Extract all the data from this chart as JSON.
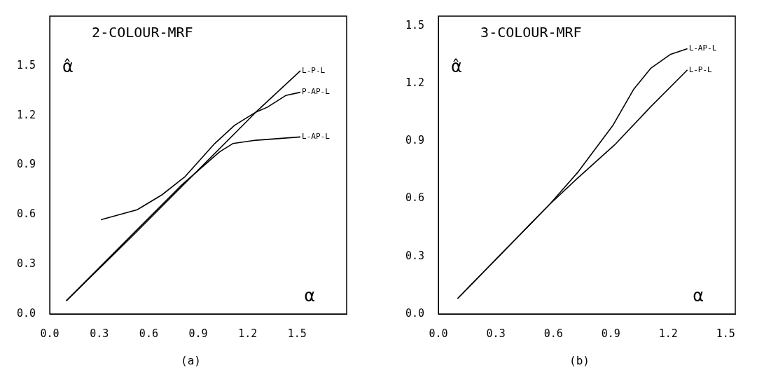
{
  "chart_data": [
    {
      "type": "line",
      "title": "2-COLOUR-MRF",
      "xlabel": "α",
      "ylabel": "α̂",
      "annotations": [
        "(a)"
      ],
      "xlim": [
        0,
        1.8
      ],
      "ylim": [
        0,
        1.8
      ],
      "xticks": [
        {
          "value": 0,
          "label": "0.0"
        },
        0.3,
        0.6,
        0.9,
        1.2,
        1.5
      ],
      "yticks": [
        {
          "value": 0,
          "label": "0.0"
        },
        0.3,
        0.6,
        0.9,
        1.2,
        1.5
      ],
      "grid": false,
      "legend": false,
      "marker": "none",
      "line_style": "solid",
      "series": [
        {
          "name": "L-P-L",
          "color": "#000000",
          "x": [
            0.1,
            0.5,
            0.9,
            1.25,
            1.52
          ],
          "values": [
            0.08,
            0.47,
            0.87,
            1.22,
            1.47
          ]
        },
        {
          "name": "P-AP-L",
          "color": "#000000",
          "x": [
            0.31,
            0.53,
            0.68,
            0.82,
            1.0,
            1.12,
            1.25,
            1.32,
            1.43,
            1.52
          ],
          "values": [
            0.57,
            0.63,
            0.72,
            0.83,
            1.03,
            1.14,
            1.22,
            1.25,
            1.32,
            1.34
          ]
        },
        {
          "name": "L-AP-L",
          "color": "#000000",
          "x": [
            0.1,
            0.5,
            0.8,
            1.03,
            1.11,
            1.25,
            1.52
          ],
          "values": [
            0.08,
            0.48,
            0.78,
            0.98,
            1.03,
            1.05,
            1.07
          ]
        }
      ]
    },
    {
      "type": "line",
      "title": "3-COLOUR-MRF",
      "xlabel": "α",
      "ylabel": "α̂",
      "annotations": [
        "(b)"
      ],
      "xlim": [
        0,
        1.55
      ],
      "ylim": [
        0,
        1.55
      ],
      "xticks": [
        {
          "value": 0,
          "label": "0.0"
        },
        0.3,
        0.6,
        0.9,
        1.2,
        1.5
      ],
      "yticks": [
        {
          "value": 0,
          "label": "0.0"
        },
        0.3,
        0.6,
        0.9,
        1.2,
        1.5
      ],
      "grid": false,
      "legend": false,
      "marker": "none",
      "line_style": "solid",
      "series": [
        {
          "name": "L-AP-L",
          "color": "#000000",
          "x": [
            0.1,
            0.58,
            0.73,
            0.91,
            1.02,
            1.11,
            1.21,
            1.3
          ],
          "values": [
            0.08,
            0.57,
            0.74,
            0.98,
            1.17,
            1.28,
            1.35,
            1.38
          ]
        },
        {
          "name": "L-P-L",
          "color": "#000000",
          "x": [
            0.1,
            0.58,
            0.73,
            0.92,
            1.11,
            1.3
          ],
          "values": [
            0.08,
            0.57,
            0.71,
            0.88,
            1.08,
            1.27
          ]
        }
      ]
    }
  ]
}
